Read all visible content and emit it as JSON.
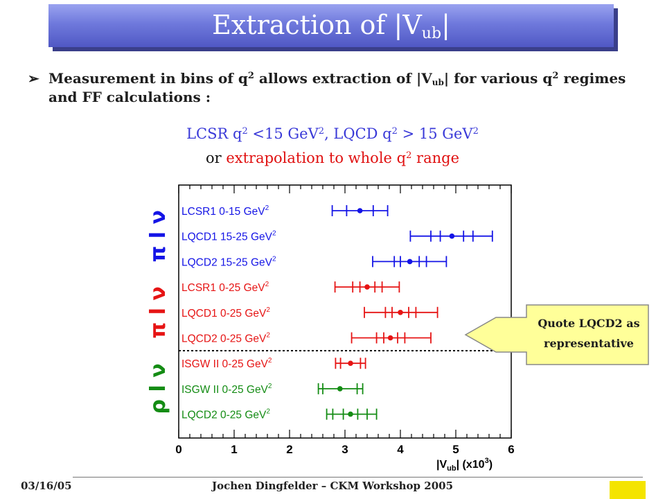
{
  "title": {
    "main": "Extraction of |V",
    "sub": "ub",
    "end": "|"
  },
  "bullet": {
    "part1": "Measurement in bins of q",
    "sup1": "2",
    "part2": " allows extraction of |V",
    "sub1": "ub",
    "part3": "| for various q",
    "sup2": "2",
    "part4": " regimes",
    "line2": "and FF calculations :"
  },
  "subtitle": {
    "l1a": "LCSR q",
    "l1a_sup": "2",
    "l1b": " <15 GeV",
    "l1b_sup": "2",
    "l1c": ",  LQCD q",
    "l1c_sup": "2",
    "l1d": " > 15 GeV",
    "l1d_sup": "2",
    "l2a": "or ",
    "l2b": " extrapolation to whole q",
    "l2b_sup": "2",
    "l2c": " range"
  },
  "callout": {
    "line1": "Quote LQCD2 as",
    "line2": "representative"
  },
  "footer": {
    "date": "03/16/05",
    "center": "Jochen Dingfelder – CKM Workshop 2005"
  },
  "colors": {
    "blue": "#1414e6",
    "red": "#e61414",
    "green": "#148c14",
    "callout_fill": "#ffff99"
  },
  "chart_data": {
    "type": "scatter",
    "xlim": [
      0,
      6
    ],
    "xticks": [
      "0",
      "1",
      "2",
      "3",
      "4",
      "5",
      "6"
    ],
    "xlabel": "|V",
    "xlabel_sub": "ub",
    "xlabel_unit": "| (x10",
    "xlabel_unit_sup": "3",
    "xlabel_end": ")",
    "groups": [
      {
        "label": "π l ν",
        "color": "blue"
      },
      {
        "label": "π l ν",
        "color": "red"
      },
      {
        "label": "ρ l ν",
        "color": "green"
      }
    ],
    "series": [
      {
        "label": "LCSR1  0-15 GeV",
        "sup": "2",
        "color": "blue",
        "value": 3.27,
        "ticks": [
          2.77,
          3.03,
          3.51,
          3.77
        ],
        "dashed_after": false
      },
      {
        "label": "LQCD1 15-25 GeV",
        "sup": "2",
        "color": "blue",
        "value": 4.93,
        "ticks": [
          4.18,
          4.55,
          4.72,
          5.14,
          5.31,
          5.66
        ],
        "dashed_after": false
      },
      {
        "label": "LQCD2 15-25 GeV",
        "sup": "2",
        "color": "blue",
        "value": 4.17,
        "ticks": [
          3.5,
          3.89,
          4.0,
          4.34,
          4.47,
          4.83
        ],
        "dashed_after": false
      },
      {
        "label": "LCSR1  0-25 GeV",
        "sup": "2",
        "color": "red",
        "value": 3.4,
        "ticks": [
          2.82,
          3.14,
          3.27,
          3.54,
          3.67,
          3.98
        ],
        "dashed_after": false
      },
      {
        "label": "LQCD1  0-25 GeV",
        "sup": "2",
        "color": "red",
        "value": 4.0,
        "ticks": [
          3.35,
          3.73,
          3.85,
          4.15,
          4.28,
          4.67
        ],
        "dashed_after": false
      },
      {
        "label": "LQCD2  0-25 GeV",
        "sup": "2",
        "color": "red",
        "value": 3.82,
        "ticks": [
          3.12,
          3.57,
          3.7,
          3.95,
          4.08,
          4.55
        ],
        "dashed_after": true
      },
      {
        "label": "ISGW II  0-25 GeV",
        "sup": "2",
        "color": "red",
        "value": 3.1,
        "ticks": [
          2.83,
          2.92,
          3.28,
          3.37
        ],
        "dashed_after": false
      },
      {
        "label": "ISGW II  0-25 GeV",
        "sup": "2",
        "color": "green",
        "value": 2.91,
        "ticks": [
          2.52,
          2.6,
          3.22,
          3.32
        ],
        "dashed_after": false
      },
      {
        "label": "LQCD2  0-25 GeV",
        "sup": "2",
        "color": "green",
        "value": 3.1,
        "ticks": [
          2.67,
          2.78,
          2.97,
          3.23,
          3.4,
          3.57
        ],
        "dashed_after": false
      }
    ]
  }
}
